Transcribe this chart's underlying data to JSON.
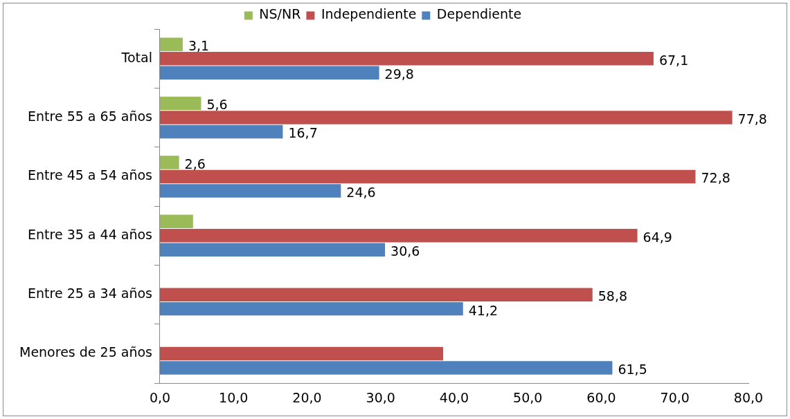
{
  "chart_data": {
    "type": "bar",
    "orientation": "horizontal",
    "categories": [
      "Total",
      "Entre 55 a 65 años",
      "Entre 45 a 54 años",
      "Entre 35 a 44 años",
      "Entre 25 a 34 años",
      "Menores de 25 años"
    ],
    "series": [
      {
        "name": "NS/NR",
        "color": "#9bbb59",
        "values": [
          3.1,
          5.6,
          2.6,
          4.5,
          0,
          0
        ],
        "value_labels": [
          "3,1",
          "5,6",
          "2,6",
          null,
          null,
          null
        ]
      },
      {
        "name": "Independiente",
        "color": "#c0504d",
        "values": [
          67.1,
          77.8,
          72.8,
          64.9,
          58.8,
          38.5
        ],
        "value_labels": [
          "67,1",
          "77,8",
          "72,8",
          "64,9",
          "58,8",
          null
        ]
      },
      {
        "name": "Dependiente",
        "color": "#4f81bd",
        "values": [
          29.8,
          16.7,
          24.6,
          30.6,
          41.2,
          61.5
        ],
        "value_labels": [
          "29,8",
          "16,7",
          "24,6",
          "30,6",
          "41,2",
          "61,5"
        ]
      }
    ],
    "xlim": [
      0,
      80
    ],
    "xticks": [
      {
        "value": 0,
        "label": "0,0"
      },
      {
        "value": 10,
        "label": "10,0"
      },
      {
        "value": 20,
        "label": "20,0"
      },
      {
        "value": 30,
        "label": "30,0"
      },
      {
        "value": 40,
        "label": "40,0"
      },
      {
        "value": 50,
        "label": "50,0"
      },
      {
        "value": 60,
        "label": "60,0"
      },
      {
        "value": 70,
        "label": "70,0"
      },
      {
        "value": 80,
        "label": "80,0"
      }
    ],
    "grid": false,
    "legend": "top"
  }
}
